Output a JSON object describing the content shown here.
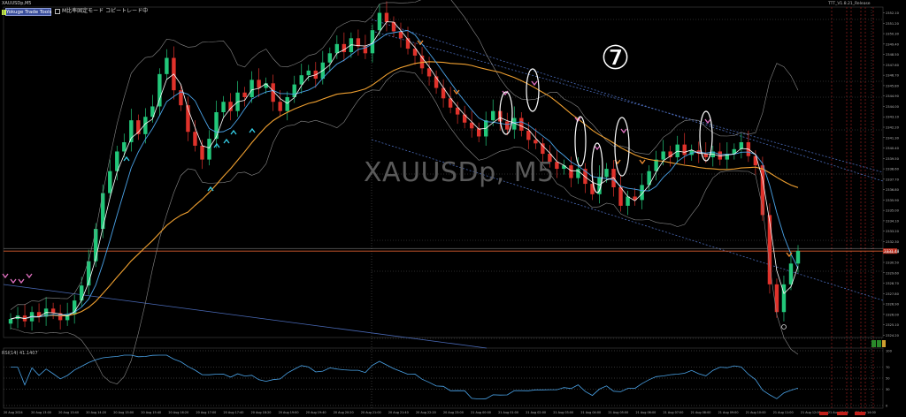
{
  "window": {
    "symbol_label": "XAUUSDp,M5",
    "corner_text": "TTT_V1.8.21_Release"
  },
  "toolbar": {
    "trade_button_label": "Yokuge Trade Tools",
    "mode_text": "M比率固定モード コピートレード中"
  },
  "overlay": {
    "watermark": "XAUUSDp, M5",
    "annotation_number": "⑦"
  },
  "rsi": {
    "label": "RSI(14) 41.1407",
    "levels": [
      100,
      70,
      50,
      30,
      0
    ]
  },
  "colors": {
    "bull": "#22c77a",
    "bear": "#e0322b",
    "ma_fast": "#ffffff",
    "ma_mid": "#4aa3e8",
    "ma_slow": "#f0a030",
    "bands": "#8a8a8a",
    "arrow_up": "#35d0e8",
    "arrow_down": "#e070c0",
    "arrow_orange": "#f08c30",
    "channel": "#4a6ab8",
    "price_line": "#e06030"
  },
  "chart_data": {
    "type": "candlestick",
    "timeframe": "M5",
    "price_range": [
      2324.0,
      2352.6
    ],
    "price_ticks": [
      "2352.10",
      "2351.20",
      "2350.30",
      "2349.40",
      "2348.50",
      "2347.60",
      "2346.70",
      "2345.80",
      "2344.90",
      "2344.00",
      "2343.10",
      "2342.20",
      "2341.30",
      "2340.40",
      "2339.50",
      "2338.60",
      "2337.70",
      "2336.80",
      "2335.90",
      "2335.00",
      "2334.10",
      "2333.20",
      "2332.30",
      "2331.40",
      "2330.50",
      "2329.60",
      "2328.70",
      "2327.80",
      "2326.90",
      "2326.00",
      "2325.10",
      "2324.20"
    ],
    "current_price": "2331.48",
    "time_labels": [
      "20 Aug 2024",
      "20 Aug 13:00",
      "20 Aug 13:40",
      "20 Aug 14:20",
      "20 Aug 15:00",
      "20 Aug 15:40",
      "20 Aug 16:20",
      "20 Aug 17:00",
      "20 Aug 17:40",
      "20 Aug 18:20",
      "20 Aug 19:00",
      "20 Aug 19:40",
      "20 Aug 20:20",
      "20 Aug 21:00",
      "20 Aug 21:40",
      "20 Aug 22:20",
      "20 Aug 23:00",
      "21 Aug 00:00",
      "21 Aug 01:00",
      "21 Aug 02:00",
      "21 Aug 03:00",
      "21 Aug 04:00",
      "21 Aug 05:00",
      "21 Aug 06:00",
      "21 Aug 07:00",
      "21 Aug 08:00",
      "21 Aug 09:00",
      "21 Aug 10:00",
      "21 Aug 11:00",
      "21 Aug 12:00",
      "21 Aug 13:00",
      "21 Aug 14:00"
    ],
    "close": [
      2325.6,
      2325.9,
      2325.4,
      2326.2,
      2325.8,
      2326.5,
      2326.1,
      2325.5,
      2326.0,
      2327.2,
      2328.5,
      2330.6,
      2333.4,
      2336.5,
      2338.4,
      2340.1,
      2340.9,
      2342.8,
      2341.6,
      2343.1,
      2344.0,
      2346.8,
      2348.2,
      2345.4,
      2344.1,
      2341.8,
      2340.6,
      2339.4,
      2341.2,
      2343.5,
      2344.4,
      2343.6,
      2345.2,
      2344.8,
      2346.3,
      2345.6,
      2346.0,
      2344.4,
      2343.6,
      2344.8,
      2345.9,
      2346.7,
      2347.1,
      2346.4,
      2347.8,
      2348.6,
      2349.4,
      2348.7,
      2349.9,
      2349.2,
      2348.6,
      2350.6,
      2352.1,
      2351.3,
      2350.5,
      2349.9,
      2349.0,
      2348.4,
      2347.3,
      2346.6,
      2345.6,
      2344.7,
      2343.9,
      2343.3,
      2342.6,
      2342.1,
      2341.4,
      2342.8,
      2343.6,
      2342.7,
      2342.0,
      2343.0,
      2341.9,
      2341.1,
      2340.8,
      2339.9,
      2339.2,
      2338.6,
      2338.9,
      2337.8,
      2338.6,
      2337.3,
      2336.4,
      2337.9,
      2338.6,
      2337.0,
      2335.4,
      2336.2,
      2335.9,
      2337.2,
      2338.4,
      2339.4,
      2340.1,
      2339.6,
      2340.7,
      2339.8,
      2340.2,
      2339.9,
      2339.6,
      2340.1,
      2339.4,
      2339.9,
      2340.3,
      2340.9,
      2339.7,
      2338.9,
      2334.6,
      2328.6,
      2326.2,
      2328.6,
      2330.4,
      2331.5
    ],
    "annotations": [
      "⑦"
    ]
  }
}
